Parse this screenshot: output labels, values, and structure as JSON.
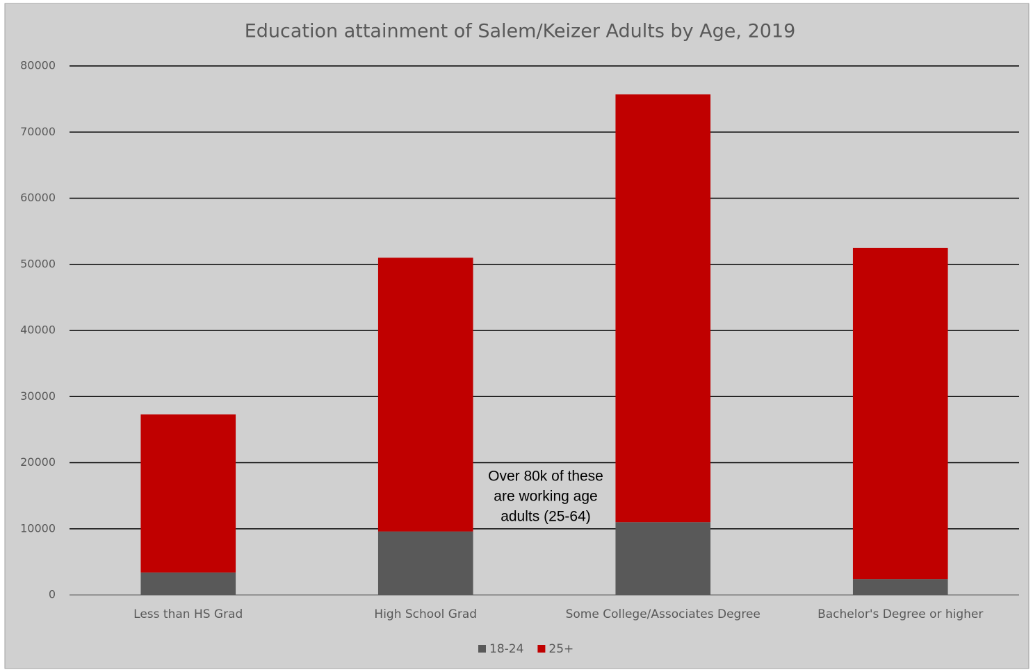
{
  "chart_data": {
    "type": "stacked_bar",
    "title": "Education attainment of Salem/Keizer Adults by Age, 2019",
    "categories": [
      "Less than HS Grad",
      "High School Grad",
      "Some College/Associates Degree",
      "Bachelor's Degree or higher"
    ],
    "series": [
      {
        "name": "18-24",
        "color": "#595959",
        "values": [
          3400,
          9600,
          11000,
          2400
        ]
      },
      {
        "name": "25+",
        "color": "#c00000",
        "values": [
          23900,
          41400,
          64700,
          50100
        ]
      }
    ],
    "ylim": [
      0,
      80000
    ],
    "yticks": [
      0,
      10000,
      20000,
      30000,
      40000,
      50000,
      60000,
      70000,
      80000
    ],
    "grid": true,
    "legend": "bottom",
    "annotation": [
      "Over 80k of these",
      "are working age",
      "adults (25-64)"
    ]
  }
}
